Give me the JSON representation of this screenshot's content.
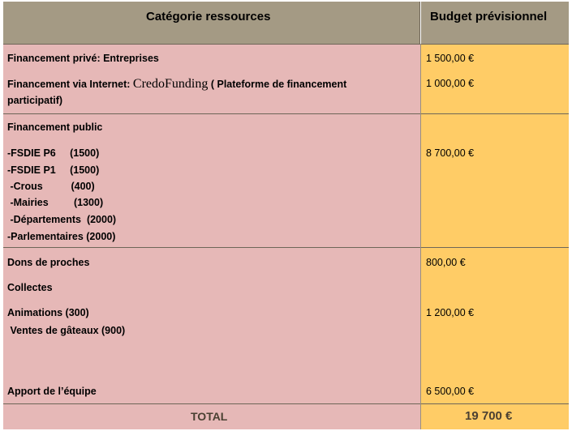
{
  "header": {
    "col1": "Catégorie ressources",
    "col2": "Budget  prévisionnel"
  },
  "rows": [
    {
      "label": "Financement privé: Entreprises",
      "value": "1 500,00 €"
    },
    {
      "label_a": "Financement via Internet:",
      "label_b": "CredoFunding",
      "label_c": "( Plateforme de financement",
      "label_d": "participatif)",
      "value": "1 000,00 €"
    },
    {
      "label": "Financement public",
      "items": [
        "-FSDIE P6     (1500)",
        "-FSDIE P1     (1500)",
        " -Crous          (400)",
        " -Mairies         (1300)",
        " -Départements  (2000)",
        "-Parlementaires (2000)"
      ],
      "value": "8 700,00 €"
    },
    {
      "label": "Dons de proches",
      "value": "800,00 €"
    },
    {
      "label": "Collectes"
    },
    {
      "label": "Animations (300)",
      "label2": " Ventes de gâteaux (900)",
      "value": "1 200,00 €"
    },
    {
      "label": "Apport de l’équipe",
      "value": "6 500,00 €"
    }
  ],
  "total": {
    "label": "TOTAL",
    "value": "19 700 €"
  }
}
